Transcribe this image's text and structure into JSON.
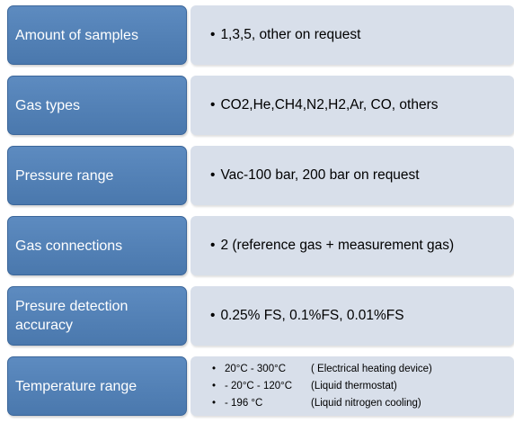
{
  "rows": [
    {
      "label": "Amount of samples",
      "value": "1,3,5, other on request"
    },
    {
      "label": "Gas types",
      "value": "CO2,He,CH4,N2,H2,Ar, CO, others"
    },
    {
      "label": "Pressure range",
      "value": "Vac-100 bar, 200 bar on request"
    },
    {
      "label": "Gas connections",
      "value": "2 (reference gas + measurement gas)"
    },
    {
      "label": "Presure detection accuracy",
      "value": "0.25% FS, 0.1%FS, 0.01%FS"
    },
    {
      "label": "Temperature range"
    }
  ],
  "temperature_items": [
    {
      "bullet": "•",
      "range": "20°C - 300°C",
      "description": "( Electrical heating device)"
    },
    {
      "bullet": "•",
      "range": "- 20°C - 120°C",
      "description": "(Liquid thermostat)"
    },
    {
      "bullet": "•",
      "range": "- 196 °C",
      "description": "(Liquid nitrogen cooling)"
    }
  ],
  "bullet": "•",
  "colors": {
    "label_bg": "#4f7db3",
    "value_bg": "#d8dfea"
  }
}
